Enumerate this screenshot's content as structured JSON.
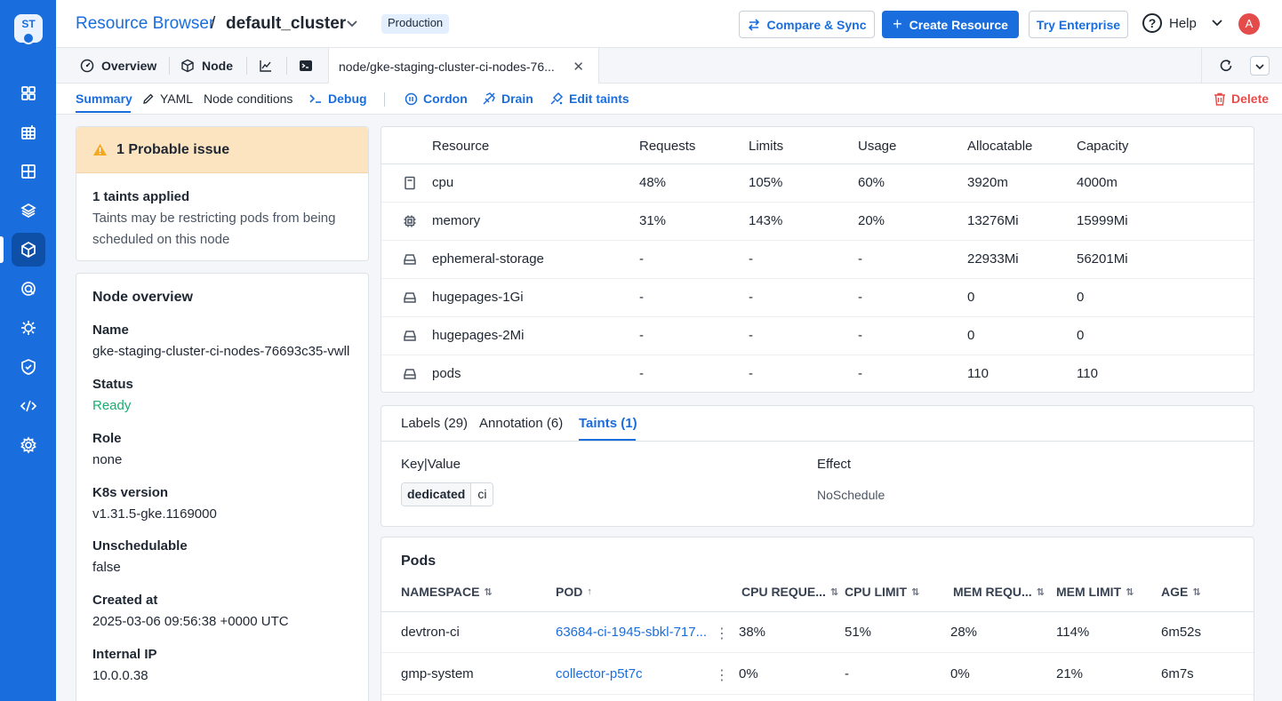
{
  "logo": {
    "text": "ST"
  },
  "sidebar": {
    "items": [
      {
        "icon": "grid-icon"
      },
      {
        "icon": "apps-icon"
      },
      {
        "icon": "table-icon"
      },
      {
        "icon": "stack-icon"
      },
      {
        "icon": "cube-icon",
        "active": true
      },
      {
        "icon": "target-icon"
      },
      {
        "icon": "bug-icon"
      },
      {
        "icon": "shield-icon"
      },
      {
        "icon": "code-icon"
      },
      {
        "icon": "settings-icon"
      }
    ]
  },
  "header": {
    "breadcrumb_link": "Resource Browser",
    "breadcrumb_sep": "/",
    "cluster": "default_cluster",
    "env_badge": "Production",
    "compare_sync": "Compare & Sync",
    "create_resource": "Create Resource",
    "try_enterprise": "Try Enterprise",
    "help": "Help",
    "avatar": "A"
  },
  "tabs": {
    "overview": "Overview",
    "node": "Node",
    "active_tab": "node/gke-staging-cluster-ci-nodes-76..."
  },
  "subnav": {
    "summary": "Summary",
    "yaml": "YAML",
    "node_conditions": "Node conditions",
    "debug": "Debug",
    "cordon": "Cordon",
    "drain": "Drain",
    "edit_taints": "Edit taints",
    "delete": "Delete"
  },
  "issue": {
    "title": "1 Probable issue",
    "heading": "1 taints applied",
    "description": "Taints may be restricting pods from being scheduled on this node"
  },
  "overview": {
    "title": "Node overview",
    "fields": [
      {
        "label": "Name",
        "value": "gke-staging-cluster-ci-nodes-76693c35-vwll"
      },
      {
        "label": "Status",
        "value": "Ready"
      },
      {
        "label": "Role",
        "value": "none"
      },
      {
        "label": "K8s version",
        "value": "v1.31.5-gke.1169000"
      },
      {
        "label": "Unschedulable",
        "value": "false"
      },
      {
        "label": "Created at",
        "value": "2025-03-06 09:56:38 +0000 UTC"
      },
      {
        "label": "Internal IP",
        "value": "10.0.0.38"
      }
    ]
  },
  "resources": {
    "headers": [
      "Resource",
      "Requests",
      "Limits",
      "Usage",
      "Allocatable",
      "Capacity"
    ],
    "rows": [
      {
        "icon": "cpu-icon",
        "name": "cpu",
        "requests": "48%",
        "limits": "105%",
        "usage": "60%",
        "allocatable": "3920m",
        "capacity": "4000m"
      },
      {
        "icon": "memory-icon",
        "name": "memory",
        "requests": "31%",
        "limits": "143%",
        "usage": "20%",
        "allocatable": "13276Mi",
        "capacity": "15999Mi"
      },
      {
        "icon": "storage-icon",
        "name": "ephemeral-storage",
        "requests": "-",
        "limits": "-",
        "usage": "-",
        "allocatable": "22933Mi",
        "capacity": "56201Mi"
      },
      {
        "icon": "storage-icon",
        "name": "hugepages-1Gi",
        "requests": "-",
        "limits": "-",
        "usage": "-",
        "allocatable": "0",
        "capacity": "0"
      },
      {
        "icon": "storage-icon",
        "name": "hugepages-2Mi",
        "requests": "-",
        "limits": "-",
        "usage": "-",
        "allocatable": "0",
        "capacity": "0"
      },
      {
        "icon": "storage-icon",
        "name": "pods",
        "requests": "-",
        "limits": "-",
        "usage": "-",
        "allocatable": "110",
        "capacity": "110"
      }
    ]
  },
  "taints_card": {
    "tabs": [
      "Labels (29)",
      "Annotation (6)",
      "Taints (1)"
    ],
    "col_key": "Key|Value",
    "col_effect": "Effect",
    "taint_key": "dedicated",
    "taint_value": "ci",
    "taint_effect": "NoSchedule"
  },
  "pods": {
    "title": "Pods",
    "headers": [
      "NAMESPACE",
      "POD",
      "CPU REQUE...",
      "CPU LIMIT",
      "MEM REQU...",
      "MEM LIMIT",
      "AGE"
    ],
    "rows": [
      {
        "namespace": "devtron-ci",
        "pod": "63684-ci-1945-sbkl-717...",
        "cpu_req": "38%",
        "cpu_limit": "51%",
        "mem_req": "28%",
        "mem_limit": "114%",
        "age": "6m52s"
      },
      {
        "namespace": "gmp-system",
        "pod": "collector-p5t7c",
        "cpu_req": "0%",
        "cpu_limit": "-",
        "mem_req": "0%",
        "mem_limit": "21%",
        "age": "6m7s"
      }
    ]
  }
}
